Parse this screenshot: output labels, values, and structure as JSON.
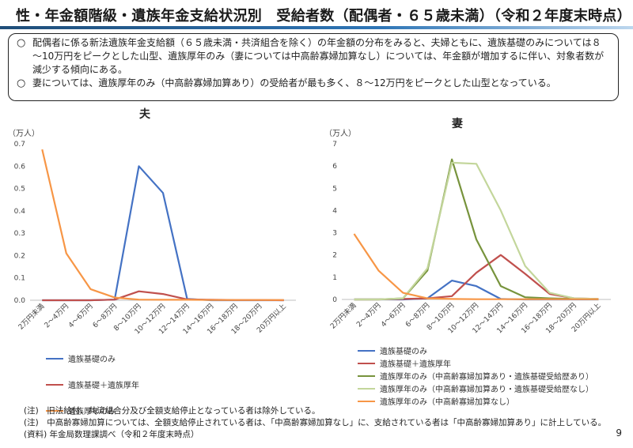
{
  "title": "性・年金額階級・遺族年金支給状況別　受給者数（配偶者・６５歳未満）（令和２年度末時点）",
  "summary": {
    "items": [
      {
        "mark": "○",
        "text": "配偶者に係る新法遺族年金支給額（６５歳未満・共済組合を除く）の年金額の分布をみると、夫婦ともに、遺族基礎のみについては８～10万円をピークとした山型、遺族厚年のみ（妻については中高齢寡婦加算なし）については、年金額が増加するに伴い、対象者数が減少する傾向にある。"
      },
      {
        "mark": "○",
        "text": "妻については、遺族厚年のみ（中高齢寡婦加算あり）の受給者が最も多く、８～12万円をピークとした山型となっている。"
      }
    ]
  },
  "notes": [
    "(注)　旧法給付、共済組合分及び全額支給停止となっている者は除外している。",
    "(注)　中高齢寡婦加算については、全額支給停止されている者は、「中高齢寡婦加算なし」に、支給されている者は「中高齢寡婦加算あり」に計上している。",
    "(資料) 年金局数理課調べ（令和２年度末時点）"
  ],
  "page_number": "9",
  "chart_data": [
    {
      "type": "line",
      "title": "夫",
      "ylabel": "（万人）",
      "ylim": [
        0,
        0.7
      ],
      "yticks": [
        "0.0",
        "0.1",
        "0.2",
        "0.3",
        "0.4",
        "0.5",
        "0.6",
        "0.7"
      ],
      "categories": [
        "2万円未満",
        "2～4万円",
        "4～6万円",
        "6～8万円",
        "8～10万円",
        "10～12万円",
        "12～14万円",
        "14～16万円",
        "16～18万円",
        "18～20万円",
        "20万円以上"
      ],
      "series": [
        {
          "name": "遺族基礎のみ",
          "color": "#4472c4",
          "values": [
            0,
            0,
            0,
            0.003,
            0.6,
            0.48,
            0.006,
            0,
            0,
            0,
            0
          ]
        },
        {
          "name": "遺族基礎＋遺族厚年",
          "color": "#c0504d",
          "values": [
            0,
            0,
            0,
            0.003,
            0.04,
            0.028,
            0.004,
            0.002,
            0.001,
            0.001,
            0
          ]
        },
        {
          "name": "遺族厚年のみ",
          "color": "#f79646",
          "values": [
            0.675,
            0.21,
            0.05,
            0.012,
            0.003,
            0.002,
            0.002,
            0.001,
            0.001,
            0.001,
            0.001
          ]
        }
      ]
    },
    {
      "type": "line",
      "title": "妻",
      "ylabel": "（万人）",
      "ylim": [
        0,
        7
      ],
      "yticks": [
        "0",
        "1",
        "2",
        "3",
        "4",
        "5",
        "6",
        "7"
      ],
      "categories": [
        "2万円未満",
        "2～4万円",
        "4～6万円",
        "6～8万円",
        "8～10万円",
        "10～12万円",
        "12～14万円",
        "14～16万円",
        "16～18万円",
        "18～20万円",
        "20万円以上"
      ],
      "series": [
        {
          "name": "遺族基礎のみ",
          "color": "#4472c4",
          "values": [
            0,
            0,
            0,
            0.05,
            0.85,
            0.6,
            0.02,
            0,
            0,
            0,
            0
          ]
        },
        {
          "name": "遺族基礎＋遺族厚年",
          "color": "#c0504d",
          "values": [
            0,
            0,
            0.02,
            0.05,
            0.15,
            1.2,
            2.0,
            1.15,
            0.25,
            0.05,
            0.02
          ]
        },
        {
          "name": "遺族厚年のみ（中高齢寡婦加算あり・遺族基礎受給歴あり）",
          "color": "#77933c",
          "values": [
            0,
            0,
            0.05,
            1.3,
            6.3,
            2.7,
            0.6,
            0.1,
            0.05,
            0.02,
            0.01
          ]
        },
        {
          "name": "遺族厚年のみ（中高齢寡婦加算あり・遺族基礎受給歴なし）",
          "color": "#c3d69b",
          "values": [
            0,
            0,
            0.05,
            1.4,
            6.15,
            6.1,
            4.0,
            1.5,
            0.3,
            0.05,
            0.02
          ]
        },
        {
          "name": "遺族厚年のみ（中高齢寡婦加算なし）",
          "color": "#f79646",
          "values": [
            2.95,
            1.3,
            0.3,
            0.05,
            0.02,
            0.01,
            0.01,
            0.01,
            0.01,
            0.01,
            0.01
          ]
        }
      ]
    }
  ]
}
